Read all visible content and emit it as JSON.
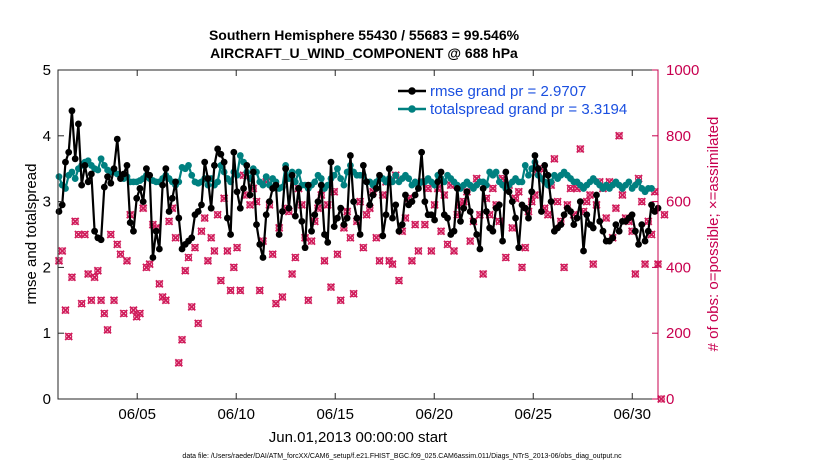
{
  "chart_data": {
    "type": "line",
    "title": "Southern Hemisphere 55430 / 55683 = 99.546%",
    "subtitle": "AIRCRAFT_U_WIND_COMPONENT @ 688 hPa",
    "xlabel": "Jun.01,2013 00:00:00 start",
    "ylabel": "rmse and totalspread",
    "y2label": "# of obs: o=possible; ×=assimilated",
    "xlim": [
      1,
      31.3
    ],
    "ylim": [
      0,
      5
    ],
    "y2lim": [
      0,
      1000
    ],
    "x_ticks": [
      5,
      10,
      15,
      20,
      25,
      30
    ],
    "x_tick_labels": [
      "06/05",
      "06/10",
      "06/15",
      "06/20",
      "06/25",
      "06/30"
    ],
    "y_ticks": [
      "0",
      "1",
      "2",
      "3",
      "4",
      "5"
    ],
    "y2_ticks": [
      "0",
      "200",
      "400",
      "600",
      "800",
      "1000"
    ],
    "colors": {
      "rmse": "#000000",
      "spread": "#008080",
      "obs": "#d01c5b",
      "right_axis": "#c8004f",
      "legend_text": "#1a4fe0"
    },
    "series": [
      {
        "name": "rmse grand pr = 2.9707",
        "key": "rmse",
        "values": [
          2.85,
          2.95,
          3.6,
          3.75,
          4.38,
          3.65,
          4.18,
          3.25,
          3.55,
          3.3,
          3.42,
          2.55,
          2.45,
          2.42,
          3.22,
          3.38,
          3.28,
          3.5,
          3.95,
          3.35,
          3.42,
          3.55,
          2.68,
          2.55,
          3.05,
          3.2,
          3.0,
          3.5,
          3.4,
          2.15,
          2.55,
          2.28,
          3.25,
          3.5,
          2.85,
          3.05,
          3.3,
          2.75,
          2.28,
          2.35,
          2.4,
          2.45,
          2.8,
          2.85,
          2.95,
          3.6,
          3.35,
          2.9,
          3.55,
          3.8,
          3.72,
          3.6,
          2.75,
          2.5,
          3.75,
          3.15,
          2.9,
          3.2,
          3.55,
          3.1,
          3.45,
          2.65,
          2.35,
          2.15,
          2.8,
          3.0,
          3.2,
          3.25,
          2.5,
          2.85,
          3.5,
          2.9,
          3.4,
          2.78,
          3.2,
          2.7,
          2.3,
          3.25,
          2.55,
          2.8,
          3.0,
          3.25,
          2.5,
          2.38,
          3.6,
          2.62,
          2.75,
          2.9,
          2.65,
          2.75,
          3.7,
          3.0,
          2.75,
          2.5,
          3.55,
          3.3,
          2.95,
          3.1,
          3.2,
          3.4,
          2.48,
          2.8,
          3.5,
          2.75,
          2.95,
          2.55,
          2.65,
          3.1,
          2.95,
          3.0,
          3.1,
          3.2,
          3.75,
          3.0,
          2.8,
          2.8,
          2.72,
          3.3,
          3.45,
          2.8,
          2.75,
          2.5,
          2.55,
          3.2,
          2.7,
          2.9,
          3.15,
          2.85,
          2.7,
          2.5,
          2.28,
          3.2,
          2.85,
          2.6,
          2.55,
          2.9,
          2.95,
          2.4,
          3.45,
          3.15,
          3.0,
          2.75,
          2.3,
          2.95,
          2.9,
          2.75,
          3.15,
          3.7,
          3.5,
          2.85,
          3.55,
          3.4,
          3.0,
          2.55,
          2.6,
          2.65,
          2.8,
          2.9,
          2.85,
          2.65,
          2.75,
          3.0,
          2.25,
          2.8,
          2.65,
          2.6,
          3.1,
          2.7,
          2.55,
          2.4,
          2.4,
          2.45,
          2.65,
          2.55,
          2.7,
          2.7,
          2.75,
          2.8,
          2.55,
          2.35,
          2.65,
          2.4,
          2.55,
          2.95,
          2.85,
          2.9
        ]
      },
      {
        "name": "totalspread grand pr = 3.3194",
        "key": "spread",
        "values": [
          3.38,
          3.25,
          3.2,
          3.4,
          3.45,
          3.35,
          3.5,
          3.55,
          3.6,
          3.62,
          3.55,
          3.5,
          3.48,
          3.65,
          3.55,
          3.48,
          3.45,
          3.45,
          3.42,
          3.4,
          3.35,
          3.38,
          3.3,
          3.3,
          3.3,
          3.32,
          3.35,
          3.4,
          3.35,
          3.32,
          3.3,
          3.3,
          3.35,
          3.4,
          3.35,
          3.3,
          3.25,
          3.3,
          3.52,
          3.5,
          3.55,
          3.4,
          3.3,
          3.28,
          3.3,
          3.35,
          3.25,
          3.35,
          3.25,
          3.3,
          3.55,
          3.45,
          3.35,
          3.3,
          3.45,
          3.4,
          3.7,
          3.6,
          3.45,
          3.35,
          3.5,
          3.45,
          3.3,
          3.25,
          3.38,
          3.25,
          3.35,
          3.3,
          3.2,
          3.22,
          3.55,
          3.35,
          3.45,
          3.3,
          3.45,
          3.25,
          3.25,
          3.2,
          3.25,
          3.3,
          3.4,
          3.35,
          3.2,
          3.25,
          3.35,
          3.4,
          3.5,
          3.35,
          3.25,
          3.45,
          3.55,
          3.45,
          3.4,
          3.4,
          3.4,
          3.3,
          3.3,
          3.25,
          3.3,
          3.35,
          3.35,
          3.3,
          3.35,
          3.3,
          3.4,
          3.3,
          3.35,
          3.4,
          3.35,
          3.25,
          3.3,
          3.25,
          3.3,
          3.3,
          3.35,
          3.3,
          3.25,
          3.4,
          3.35,
          3.3,
          3.4,
          3.35,
          3.3,
          3.25,
          3.2,
          3.25,
          3.3,
          3.25,
          3.2,
          3.25,
          3.3,
          3.3,
          3.25,
          3.45,
          3.4,
          3.45,
          3.3,
          3.25,
          3.2,
          3.25,
          3.3,
          3.35,
          3.3,
          3.3,
          3.55,
          3.4,
          3.5,
          3.6,
          3.4,
          3.35,
          3.3,
          3.25,
          3.3,
          3.4,
          3.35,
          3.4,
          3.45,
          3.4,
          3.35,
          3.3,
          3.3,
          3.25,
          3.2,
          3.25,
          3.3,
          3.35,
          3.3,
          3.25,
          3.2,
          3.25,
          3.2,
          3.25,
          3.3,
          3.25,
          3.2,
          3.25,
          3.3,
          3.2,
          3.25,
          3.3,
          3.2,
          3.15,
          3.2,
          3.2
        ]
      },
      {
        "name": "obs count",
        "key": "obs",
        "axis": "right",
        "values": [
          420,
          450,
          270,
          190,
          370,
          540,
          500,
          290,
          500,
          380,
          300,
          370,
          390,
          300,
          260,
          210,
          500,
          300,
          470,
          440,
          260,
          420,
          560,
          270,
          250,
          260,
          580,
          400,
          410,
          530,
          520,
          350,
          310,
          300,
          540,
          580,
          490,
          110,
          180,
          390,
          430,
          280,
          460,
          230,
          510,
          550,
          420,
          490,
          450,
          560,
          360,
          610,
          450,
          330,
          400,
          460,
          330,
          680,
          620,
          590,
          640,
          600,
          330,
          480,
          660,
          590,
          440,
          290,
          520,
          310,
          580,
          570,
          380,
          430,
          640,
          590,
          490,
          300,
          480,
          540,
          580,
          620,
          420,
          590,
          340,
          630,
          440,
          300,
          520,
          570,
          490,
          320,
          540,
          600,
          460,
          560,
          580,
          630,
          490,
          420,
          620,
          660,
          420,
          410,
          680,
          360,
          510,
          550,
          610,
          420,
          530,
          450,
          660,
          530,
          640,
          450,
          590,
          640,
          510,
          620,
          470,
          650,
          450,
          560,
          590,
          600,
          630,
          480,
          540,
          670,
          560,
          380,
          610,
          560,
          640,
          590,
          540,
          670,
          430,
          650,
          520,
          610,
          630,
          400,
          460,
          570,
          600,
          620,
          690,
          700,
          580,
          560,
          650,
          730,
          600,
          540,
          400,
          590,
          640,
          560,
          640,
          760,
          570,
          600,
          620,
          410,
          590,
          660,
          640,
          550,
          660,
          490,
          580,
          800,
          620,
          550,
          540,
          510,
          380,
          670,
          600,
          410,
          540,
          500,
          630,
          410,
          0,
          560
        ]
      }
    ],
    "legend": [
      {
        "label": "rmse grand pr = 2.9707",
        "key": "rmse"
      },
      {
        "label": "totalspread grand pr = 3.3194",
        "key": "spread"
      }
    ]
  },
  "footer": "data file: /Users/raeder/DAI/ATM_forcXX/CAM6_setup/f.e21.FHIST_BGC.f09_025.CAM6assim.011/Diags_NTrS_2013-06/obs_diag_output.nc"
}
